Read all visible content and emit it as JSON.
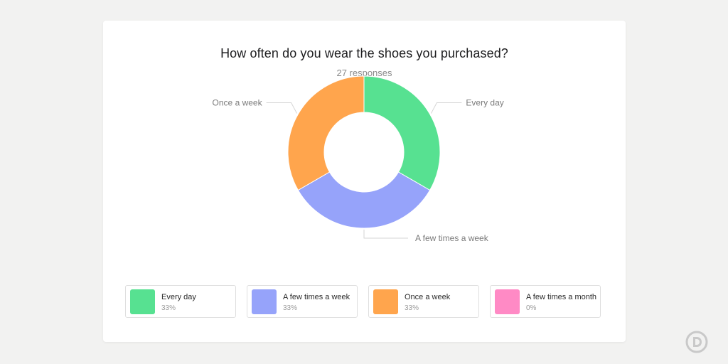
{
  "chart_data": {
    "type": "pie",
    "title": "How often do you wear the shoes you purchased?",
    "subtitle": "27 responses",
    "categories": [
      "Every day",
      "A few times a week",
      "Once a week",
      "A few times a month"
    ],
    "values": [
      33,
      33,
      33,
      0
    ],
    "value_labels": [
      "33%",
      "33%",
      "33%",
      "0%"
    ],
    "colors": [
      "#57e191",
      "#96a3fa",
      "#ffa54d",
      "#ff8ac5"
    ],
    "donut": true,
    "legend_position": "bottom"
  },
  "logo": {
    "icon": "d-brand-logo-icon"
  }
}
